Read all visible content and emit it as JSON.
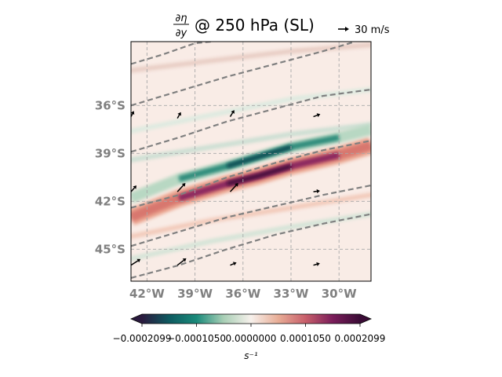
{
  "chart_data": {
    "type": "heatmap",
    "title_math": {
      "numerator": "∂η",
      "denominator": "∂y"
    },
    "title_text": "@ 250 hPa (SL)",
    "quiver_key_label": "30 m/s",
    "xlim": [
      -43,
      -28
    ],
    "ylim": [
      -47,
      -32
    ],
    "x_ticks": [
      {
        "value": -42,
        "label": "42°W"
      },
      {
        "value": -39,
        "label": "39°W"
      },
      {
        "value": -36,
        "label": "36°W"
      },
      {
        "value": -33,
        "label": "33°W"
      },
      {
        "value": -30,
        "label": "30°W"
      }
    ],
    "y_ticks": [
      {
        "value": -36,
        "label": "36°S"
      },
      {
        "value": -39,
        "label": "39°S"
      },
      {
        "value": -42,
        "label": "42°S"
      },
      {
        "value": -45,
        "label": "45°S"
      }
    ],
    "grid": true,
    "grid_style": "dashed",
    "colorbar": {
      "orientation": "horizontal",
      "extend": "both",
      "label": "s⁻¹",
      "range": [
        -0.0002099,
        0.0002099
      ],
      "tick_labels": [
        "−0.0002099",
        "−0.0001050",
        "0.0000000",
        "0.0001050",
        "0.0002099"
      ],
      "colors": [
        "#2a1a3e",
        "#0e5a60",
        "#1a8a7a",
        "#a9cfb6",
        "#f7f1ec",
        "#e8ad96",
        "#c85f6b",
        "#7a1d5a",
        "#3a0c36"
      ]
    },
    "features": [
      {
        "kind": "positive_band",
        "description": "long thin band of positive values crossing from west-southwest to east-northeast",
        "centerline": [
          [
            -43,
            -43.0
          ],
          [
            -40,
            -41.8
          ],
          [
            -37,
            -40.9
          ],
          [
            -35,
            -40.4
          ],
          [
            -33,
            -39.8
          ],
          [
            -30,
            -39.1
          ],
          [
            -28,
            -38.5
          ]
        ],
        "peak": 0.00021
      },
      {
        "kind": "negative_band",
        "description": "band of negative values just north of the positive band",
        "centerline": [
          [
            -43,
            -41.8
          ],
          [
            -40,
            -40.6
          ],
          [
            -37,
            -39.8
          ],
          [
            -35,
            -39.2
          ],
          [
            -33,
            -38.6
          ],
          [
            -30,
            -38.0
          ],
          [
            -28,
            -37.5
          ]
        ],
        "peak": -0.00021
      }
    ],
    "contours": [
      [
        [
          -43,
          -46.8
        ],
        [
          -40,
          -46.0
        ],
        [
          -37,
          -45.0
        ],
        [
          -34,
          -44.1
        ],
        [
          -31,
          -43.4
        ],
        [
          -28,
          -42.8
        ]
      ],
      [
        [
          -43,
          -44.8
        ],
        [
          -40,
          -43.9
        ],
        [
          -37,
          -43.0
        ],
        [
          -34,
          -42.3
        ],
        [
          -31,
          -41.6
        ],
        [
          -28,
          -41.0
        ]
      ],
      [
        [
          -43,
          -42.4
        ],
        [
          -40,
          -41.6
        ],
        [
          -37,
          -40.5
        ],
        [
          -34,
          -39.6
        ],
        [
          -31,
          -38.8
        ],
        [
          -28,
          -38.2
        ]
      ],
      [
        [
          -43,
          -38.9
        ],
        [
          -40,
          -38.0
        ],
        [
          -37,
          -37.0
        ],
        [
          -34,
          -36.2
        ],
        [
          -31,
          -35.4
        ],
        [
          -28,
          -35.0
        ]
      ],
      [
        [
          -43,
          -36.0
        ],
        [
          -40,
          -35.1
        ],
        [
          -37,
          -34.2
        ],
        [
          -34,
          -33.4
        ],
        [
          -31,
          -32.6
        ],
        [
          -29,
          -32.0
        ]
      ],
      [
        [
          -43,
          -33.4
        ],
        [
          -41,
          -32.8
        ],
        [
          -39,
          -32.1
        ],
        [
          -38,
          -32.0
        ]
      ]
    ],
    "wind_vectors": [
      {
        "lon": -43,
        "lat": -36.7,
        "u": 3,
        "v": 6
      },
      {
        "lon": -40.1,
        "lat": -36.8,
        "u": 4,
        "v": 7
      },
      {
        "lon": -36.8,
        "lat": -36.7,
        "u": 5,
        "v": 8
      },
      {
        "lon": -31.6,
        "lat": -36.7,
        "u": 8,
        "v": 3
      },
      {
        "lon": -43,
        "lat": -41.4,
        "u": 7,
        "v": 8
      },
      {
        "lon": -40.1,
        "lat": -41.4,
        "u": 12,
        "v": 13
      },
      {
        "lon": -36.8,
        "lat": -41.4,
        "u": 12,
        "v": 13
      },
      {
        "lon": -31.6,
        "lat": -41.4,
        "u": 7,
        "v": 1
      },
      {
        "lon": -43,
        "lat": -46.0,
        "u": 14,
        "v": 9
      },
      {
        "lon": -40.1,
        "lat": -46.0,
        "u": 13,
        "v": 10
      },
      {
        "lon": -36.8,
        "lat": -46.0,
        "u": 7,
        "v": 3
      },
      {
        "lon": -31.6,
        "lat": -46.0,
        "u": 7,
        "v": 2
      }
    ]
  }
}
